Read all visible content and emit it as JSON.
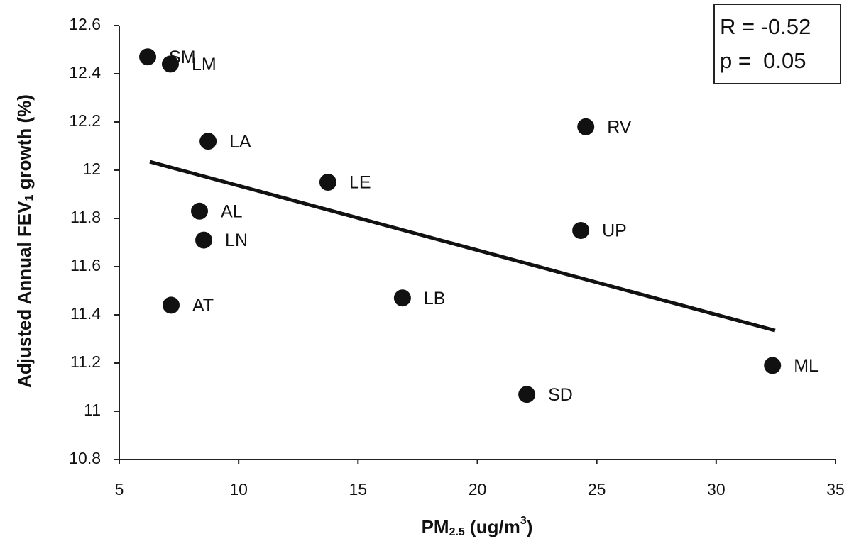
{
  "chart_data": {
    "type": "scatter",
    "x_label": {
      "text": "PM",
      "sub": "2.5",
      "rest": " (ug/m",
      "sup": "3",
      "end": ")"
    },
    "y_label": {
      "text": "Adjusted Annual FEV",
      "sub": "1",
      "rest": " growth (%)"
    },
    "stats": [
      "R = -0.52",
      "p =  0.05"
    ],
    "series": [
      {
        "color": "#111111",
        "labels": [
          "SM",
          "LM",
          "LA",
          "LE",
          "AL",
          "LN",
          "AT",
          "LB",
          "RV",
          "UP",
          "SD",
          "ML"
        ],
        "x": [
          6.19,
          7.14,
          8.72,
          13.74,
          8.36,
          8.54,
          7.17,
          16.86,
          24.54,
          24.33,
          22.07,
          32.36
        ],
        "values": [
          12.47,
          12.44,
          12.12,
          11.95,
          11.83,
          11.71,
          11.44,
          11.47,
          12.18,
          11.75,
          11.07,
          11.19
        ]
      }
    ],
    "trendline": {
      "x": [
        6.28,
        32.47
      ],
      "values": [
        12.035,
        11.335
      ],
      "color": "#111111"
    },
    "xlim": [
      5,
      35
    ],
    "xticks": [
      5,
      10,
      15,
      20,
      25,
      30,
      35
    ],
    "ylim": [
      10.8,
      12.6
    ],
    "yticks": [
      10.8,
      11,
      11.2,
      11.4,
      11.6,
      11.8,
      12,
      12.2,
      12.4,
      12.6
    ],
    "grid": false
  }
}
